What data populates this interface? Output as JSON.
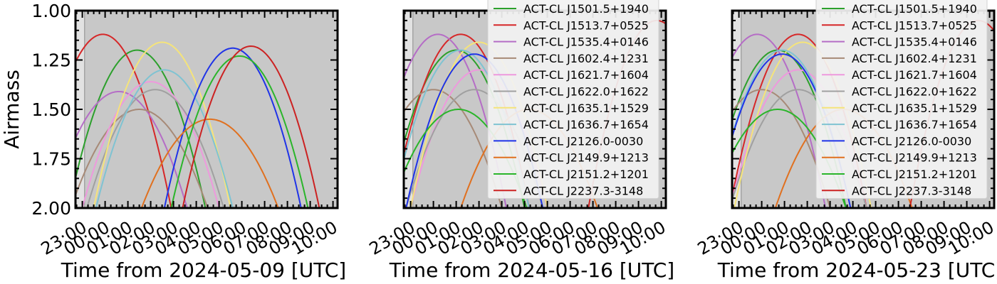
{
  "figure": {
    "ylabel": "Airmass"
  },
  "chart_data": [
    {
      "type": "line",
      "xlabel": "Time from 2024-05-09 [UTC]",
      "ylabel": "Airmass",
      "ylim": [
        2.0,
        1.0
      ],
      "y_inverted": true,
      "x_range_hours": [
        22.7,
        34.2
      ],
      "x_tick_labels": [
        "23:00",
        "00:00",
        "01:00",
        "02:00",
        "03:00",
        "04:00",
        "05:00",
        "06:00",
        "07:00",
        "08:00",
        "09:00",
        "10:00"
      ],
      "y_tick_labels": [
        "1.00",
        "1.25",
        "1.50",
        "1.75",
        "2.00"
      ],
      "legend": false,
      "series": [
        {
          "name": "ACT-CL J1501.5+1940",
          "color": "#2ca02c",
          "peak_hour": 25.4,
          "min_airmass": 1.2
        },
        {
          "name": "ACT-CL J1513.7+0525",
          "color": "#d62728",
          "peak_hour": 23.9,
          "min_airmass": 1.12
        },
        {
          "name": "ACT-CL J1535.4+0146",
          "color": "#b56dc6",
          "peak_hour": 24.6,
          "min_airmass": 1.41
        },
        {
          "name": "ACT-CL J1602.4+1231",
          "color": "#a78a77",
          "peak_hour": 25.5,
          "min_airmass": 1.5
        },
        {
          "name": "ACT-CL J1621.7+1604",
          "color": "#ee99dd",
          "peak_hour": 26.0,
          "min_airmass": 1.36
        },
        {
          "name": "ACT-CL J1622.0+1622",
          "color": "#a0a0a0",
          "peak_hour": 26.2,
          "min_airmass": 1.4
        },
        {
          "name": "ACT-CL J1635.1+1529",
          "color": "#f5e47a",
          "peak_hour": 26.5,
          "min_airmass": 1.16
        },
        {
          "name": "ACT-CL J1636.7+1654",
          "color": "#7fc3d2",
          "peak_hour": 26.6,
          "min_airmass": 1.3
        },
        {
          "name": "ACT-CL J2126.0-0030",
          "color": "#1f33e8",
          "peak_hour": 29.6,
          "min_airmass": 1.19
        },
        {
          "name": "ACT-CL J2149.9+1213",
          "color": "#e0701f",
          "peak_hour": 28.6,
          "min_airmass": 1.55
        },
        {
          "name": "ACT-CL J2151.2+1201",
          "color": "#2ab52a",
          "peak_hour": 29.9,
          "min_airmass": 1.23
        },
        {
          "name": "ACT-CL J2237.3-3148",
          "color": "#cc2222",
          "peak_hour": 30.4,
          "min_airmass": 1.18
        }
      ]
    },
    {
      "type": "line",
      "xlabel": "Time from 2024-05-16 [UTC]",
      "ylim": [
        2.0,
        1.0
      ],
      "y_inverted": true,
      "x_range_hours": [
        22.7,
        34.2
      ],
      "x_tick_labels": [
        "23:00",
        "00:00",
        "01:00",
        "02:00",
        "03:00",
        "04:00",
        "05:00",
        "06:00",
        "07:00",
        "08:00",
        "09:00",
        "10:00"
      ],
      "legend": true,
      "legend_loc": "upper right",
      "series": [
        {
          "name": "ACT-CL J1501.5+1940",
          "color": "#2ca02c",
          "peak_hour": 25.0,
          "min_airmass": 1.2
        },
        {
          "name": "ACT-CL J1513.7+0525",
          "color": "#d62728",
          "peak_hour": 25.2,
          "min_airmass": 1.12
        },
        {
          "name": "ACT-CL J1535.4+0146",
          "color": "#b56dc6",
          "peak_hour": 24.2,
          "min_airmass": 1.12
        },
        {
          "name": "ACT-CL J1602.4+1231",
          "color": "#a78a77",
          "peak_hour": 24.0,
          "min_airmass": 1.4
        },
        {
          "name": "ACT-CL J1621.7+1604",
          "color": "#ee99dd",
          "peak_hour": 26.0,
          "min_airmass": 1.3
        },
        {
          "name": "ACT-CL J1622.0+1622",
          "color": "#a0a0a0",
          "peak_hour": 25.8,
          "min_airmass": 1.4
        },
        {
          "name": "ACT-CL J1635.1+1529",
          "color": "#f5e47a",
          "peak_hour": 26.0,
          "min_airmass": 1.16
        },
        {
          "name": "ACT-CL J1636.7+1654",
          "color": "#7fc3d2",
          "peak_hour": 25.2,
          "min_airmass": 1.2
        },
        {
          "name": "ACT-CL J2126.0-0030",
          "color": "#1f33e8",
          "peak_hour": 25.8,
          "min_airmass": 1.22
        },
        {
          "name": "ACT-CL J2149.9+1213",
          "color": "#e0701f",
          "peak_hour": 28.2,
          "min_airmass": 1.5
        },
        {
          "name": "ACT-CL J2151.2+1201",
          "color": "#2ab52a",
          "peak_hour": 25.1,
          "min_airmass": 1.5
        },
        {
          "name": "ACT-CL J2237.3-3148",
          "color": "#cc2222",
          "peak_hour": 33.8,
          "min_airmass": 1.05
        }
      ]
    },
    {
      "type": "line",
      "xlabel": "Time from 2024-05-23 [UTC]",
      "ylim": [
        2.0,
        1.0
      ],
      "y_inverted": true,
      "x_range_hours": [
        22.7,
        34.2
      ],
      "x_tick_labels": [
        "23:00",
        "00:00",
        "01:00",
        "02:00",
        "03:00",
        "04:00",
        "05:00",
        "06:00",
        "07:00",
        "08:00",
        "09:00",
        "10:00"
      ],
      "legend": true,
      "legend_loc": "upper right",
      "series": [
        {
          "name": "ACT-CL J1501.5+1940",
          "color": "#2ca02c",
          "peak_hour": 24.7,
          "min_airmass": 1.2
        },
        {
          "name": "ACT-CL J1513.7+0525",
          "color": "#d62728",
          "peak_hour": 25.6,
          "min_airmass": 1.12
        },
        {
          "name": "ACT-CL J1535.4+0146",
          "color": "#b56dc6",
          "peak_hour": 23.8,
          "min_airmass": 1.12
        },
        {
          "name": "ACT-CL J1602.4+1231",
          "color": "#a78a77",
          "peak_hour": 24.0,
          "min_airmass": 1.4
        },
        {
          "name": "ACT-CL J1621.7+1604",
          "color": "#ee99dd",
          "peak_hour": 25.6,
          "min_airmass": 1.3
        },
        {
          "name": "ACT-CL J1622.0+1622",
          "color": "#a0a0a0",
          "peak_hour": 25.6,
          "min_airmass": 1.4
        },
        {
          "name": "ACT-CL J1635.1+1529",
          "color": "#f5e47a",
          "peak_hour": 25.8,
          "min_airmass": 1.16
        },
        {
          "name": "ACT-CL J1636.7+1654",
          "color": "#7fc3d2",
          "peak_hour": 24.9,
          "min_airmass": 1.2
        },
        {
          "name": "ACT-CL J2126.0-0030",
          "color": "#1f33e8",
          "peak_hour": 24.9,
          "min_airmass": 1.22
        },
        {
          "name": "ACT-CL J2149.9+1213",
          "color": "#e0701f",
          "peak_hour": 27.6,
          "min_airmass": 1.5
        },
        {
          "name": "ACT-CL J2151.2+1201",
          "color": "#2ab52a",
          "peak_hour": 24.7,
          "min_airmass": 1.5
        },
        {
          "name": "ACT-CL J2237.3-3148",
          "color": "#cc2222",
          "peak_hour": 33.5,
          "min_airmass": 1.05
        }
      ]
    }
  ]
}
